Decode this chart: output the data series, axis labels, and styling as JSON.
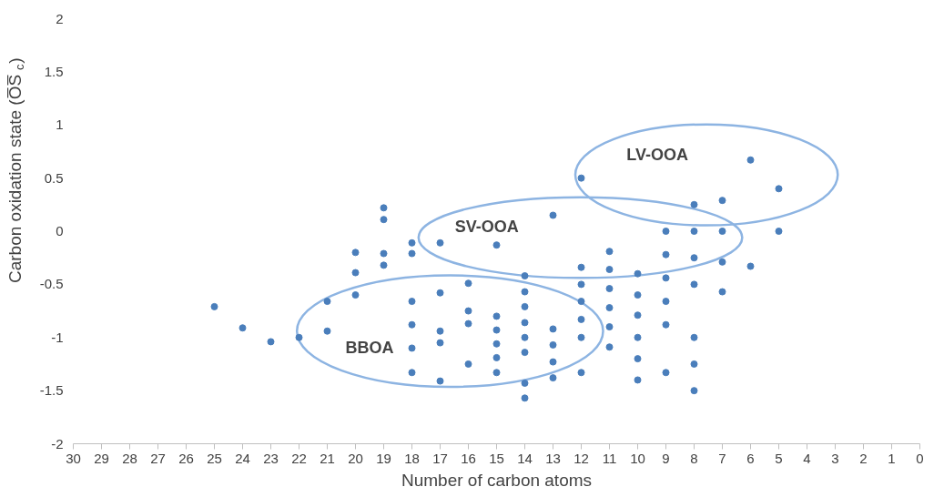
{
  "chart_data": {
    "type": "scatter",
    "xlabel": "Number of carbon atoms",
    "ylabel": "Carbon oxidation state (O̅S̅$_{c}$)",
    "xlim": [
      30,
      0
    ],
    "xticks": [
      30,
      29,
      28,
      27,
      26,
      25,
      24,
      23,
      22,
      21,
      20,
      19,
      18,
      17,
      16,
      15,
      14,
      13,
      12,
      11,
      10,
      9,
      8,
      7,
      6,
      5,
      4,
      3,
      2,
      1,
      0
    ],
    "ylim": [
      -2,
      2
    ],
    "yticks": [
      -2,
      -1.5,
      -1,
      -0.5,
      0,
      0.5,
      1,
      1.5,
      2
    ],
    "grid": false,
    "marker": "circle",
    "series": [
      {
        "color": "#4a7ebb",
        "x": [
          25,
          24,
          23,
          22,
          21,
          21,
          20,
          20,
          20,
          19,
          19,
          19,
          19,
          18,
          18,
          18,
          18,
          18,
          18,
          17,
          17,
          17,
          17,
          17,
          16,
          16,
          16,
          16,
          15,
          15,
          15,
          15,
          15,
          15,
          14,
          14,
          14,
          14,
          14,
          14,
          14,
          14,
          13,
          13,
          13,
          13,
          13,
          12,
          12,
          12,
          12,
          12,
          12,
          12,
          11,
          11,
          11,
          11,
          11,
          11,
          10,
          10,
          10,
          10,
          10,
          10,
          9,
          9,
          9,
          9,
          9,
          9,
          8,
          8,
          8,
          8,
          8,
          8,
          8,
          7,
          7,
          7,
          7,
          6,
          6,
          5,
          5
        ],
        "values": [
          -0.71,
          -0.91,
          -1.04,
          -1.0,
          -0.66,
          -0.94,
          -0.2,
          -0.39,
          -0.6,
          0.22,
          0.11,
          -0.21,
          -0.32,
          -0.11,
          -0.21,
          -0.66,
          -0.88,
          -1.1,
          -1.33,
          -0.11,
          -0.58,
          -0.94,
          -1.05,
          -1.41,
          -0.49,
          -0.75,
          -0.87,
          -1.25,
          -0.13,
          -0.8,
          -0.93,
          -1.06,
          -1.19,
          -1.33,
          -0.42,
          -0.57,
          -0.71,
          -0.86,
          -1.0,
          -1.14,
          -1.43,
          -1.57,
          0.15,
          -0.92,
          -1.07,
          -1.23,
          -1.38,
          0.5,
          -0.34,
          -0.5,
          -0.66,
          -0.83,
          -1.0,
          -1.33,
          -0.19,
          -0.36,
          -0.54,
          -0.72,
          -0.9,
          -1.09,
          -0.4,
          -0.6,
          -0.79,
          -1.0,
          -1.2,
          -1.4,
          0.0,
          -0.22,
          -0.44,
          -0.66,
          -0.88,
          -1.33,
          0.25,
          0.0,
          -0.25,
          -0.5,
          -1.0,
          -1.25,
          -1.5,
          0.29,
          0.0,
          -0.29,
          -0.57,
          0.67,
          -0.33,
          0.4,
          0.0
        ]
      }
    ],
    "annotations": [
      "BBOA",
      "SV-OOA",
      "LV-OOA"
    ]
  }
}
